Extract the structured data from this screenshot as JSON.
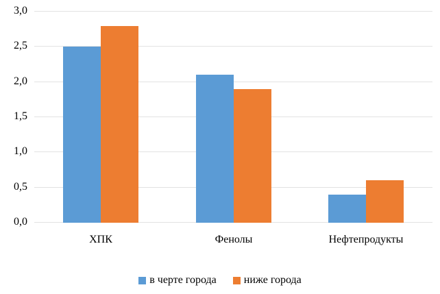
{
  "chart_data": {
    "type": "bar",
    "title": "",
    "categories": [
      "ХПК",
      "Фенолы",
      "Нефтепродукты"
    ],
    "series": [
      {
        "name": "в черте города",
        "color": "#5B9BD5",
        "values": [
          2.5,
          2.1,
          0.4
        ]
      },
      {
        "name": "ниже города",
        "color": "#ED7D31",
        "values": [
          2.8,
          1.9,
          0.6
        ]
      }
    ],
    "ylim": [
      0,
      3.0
    ],
    "ytick_step": 0.5,
    "yticks": [
      {
        "value": 0.0,
        "label": "0,0"
      },
      {
        "value": 0.5,
        "label": "0,5"
      },
      {
        "value": 1.0,
        "label": "1,0"
      },
      {
        "value": 1.5,
        "label": "1,5"
      },
      {
        "value": 2.0,
        "label": "2,0"
      },
      {
        "value": 2.5,
        "label": "2,5"
      },
      {
        "value": 3.0,
        "label": "3,0"
      }
    ],
    "grid": true,
    "gridline_color": "#E2E2E2",
    "legend_position": "bottom",
    "background": "#FFFFFF"
  }
}
